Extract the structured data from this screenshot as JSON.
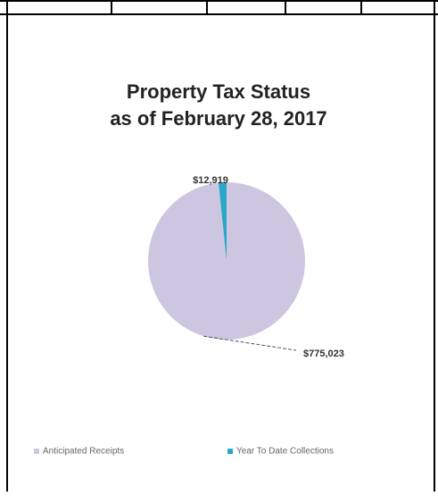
{
  "chart_data": {
    "type": "pie",
    "title": "Property Tax Status",
    "subtitle": "as of February 28, 2017",
    "categories": [
      "Anticipated Receipts",
      "Year To Date Collections"
    ],
    "values": [
      775023,
      12919
    ],
    "value_labels": [
      "$775,023",
      "$12,919"
    ],
    "colors": [
      "#cdc6e0",
      "#2aa7c6"
    ],
    "legend": "bottom"
  }
}
